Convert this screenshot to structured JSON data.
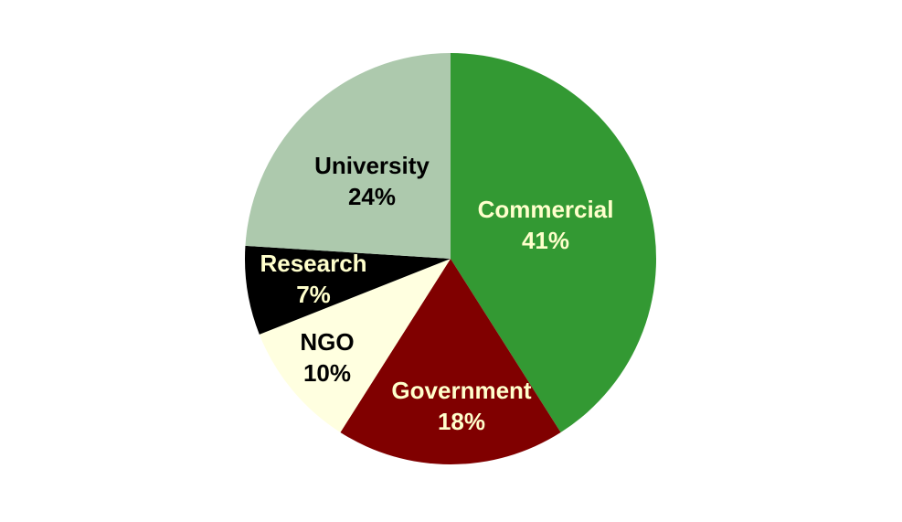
{
  "chart_data": {
    "type": "pie",
    "title": "",
    "start_angle_deg": 0,
    "direction": "clockwise",
    "slices": [
      {
        "label": "Commercial",
        "value": 41,
        "value_label": "41%",
        "color": "#339933",
        "label_color": "#ffffcc"
      },
      {
        "label": "Government",
        "value": 18,
        "value_label": "18%",
        "color": "#800000",
        "label_color": "#ffffcc"
      },
      {
        "label": "NGO",
        "value": 10,
        "value_label": "10%",
        "color": "#ffffe0",
        "label_color": "#000000"
      },
      {
        "label": "Research",
        "value": 7,
        "value_label": "7%",
        "color": "#000000",
        "label_color": "#ffffcc"
      },
      {
        "label": "University",
        "value": 24,
        "value_label": "24%",
        "color": "#adc9ad",
        "label_color": "#000000"
      }
    ],
    "legend": "none"
  }
}
